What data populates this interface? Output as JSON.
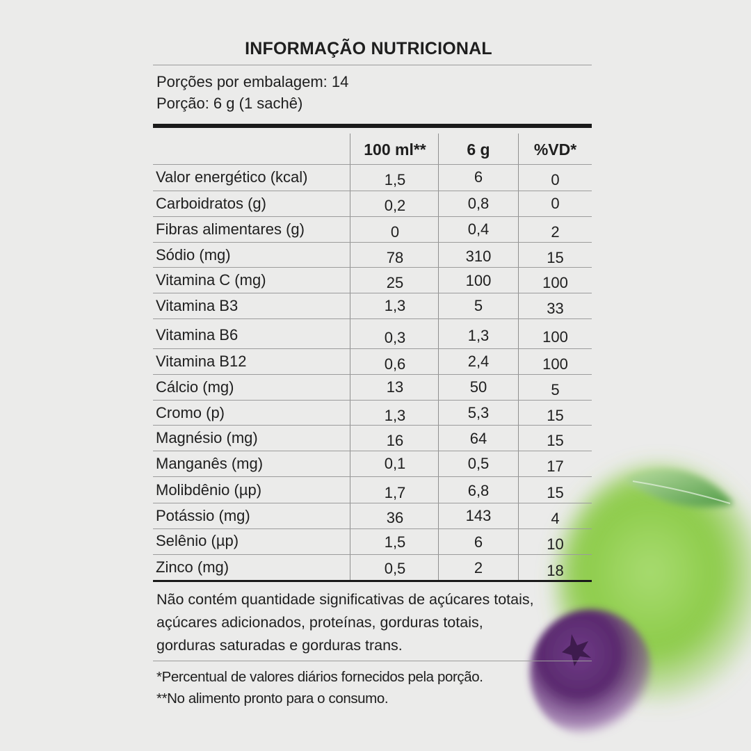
{
  "title": "INFORMAÇÃO NUTRICIONAL",
  "servings_per_package": "Porções por embalagem: 14",
  "serving_size": "Porção: 6 g (1 sachê)",
  "columns": [
    "100 ml**",
    "6 g",
    "%VD*"
  ],
  "rows": [
    {
      "label": "Valor energético (kcal)",
      "per100ml": "1,5",
      "per6g": "6",
      "vd": "0"
    },
    {
      "label": "Carboidratos (g)",
      "per100ml": "0,2",
      "per6g": "0,8",
      "vd": "0"
    },
    {
      "label": "Fibras alimentares (g)",
      "per100ml": "0",
      "per6g": "0,4",
      "vd": "2"
    },
    {
      "label": "Sódio (mg)",
      "per100ml": "78",
      "per6g": "310",
      "vd": "15"
    },
    {
      "label": "Vitamina C (mg)",
      "per100ml": "25",
      "per6g": "100",
      "vd": "100"
    },
    {
      "label": "Vitamina B3",
      "per100ml": "1,3",
      "per6g": "5",
      "vd": "33"
    },
    {
      "label": "Vitamina B6",
      "per100ml": "0,3",
      "per6g": "1,3",
      "vd": "100"
    },
    {
      "label": "Vitamina B12",
      "per100ml": "0,6",
      "per6g": "2,4",
      "vd": "100"
    },
    {
      "label": "Cálcio (mg)",
      "per100ml": "13",
      "per6g": "50",
      "vd": "5"
    },
    {
      "label": "Cromo (p)",
      "per100ml": "1,3",
      "per6g": "5,3",
      "vd": "15"
    },
    {
      "label": "Magnésio (mg)",
      "per100ml": "16",
      "per6g": "64",
      "vd": "15"
    },
    {
      "label": "Manganês (mg)",
      "per100ml": "0,1",
      "per6g": "0,5",
      "vd": "17"
    },
    {
      "label": "Molibdênio (µp)",
      "per100ml": "1,7",
      "per6g": "6,8",
      "vd": "15"
    },
    {
      "label": "Potássio (mg)",
      "per100ml": "36",
      "per6g": "143",
      "vd": "4"
    },
    {
      "label": "Selênio (µp)",
      "per100ml": "1,5",
      "per6g": "6",
      "vd": "10"
    },
    {
      "label": "Zinco (mg)",
      "per100ml": "0,5",
      "per6g": "2",
      "vd": "18"
    }
  ],
  "note_lines": [
    "Não contém quantidade significativas de açúcares totais,",
    "açúcares adicionados, proteínas, gorduras totais,",
    "gorduras saturadas e gorduras trans."
  ],
  "footnote_vd": "*Percentual de valores diários fornecidos pela porção.",
  "footnote_ready": "**No alimento pronto para o consumo.",
  "colors": {
    "background": "#ebebea",
    "text": "#1e1e1e",
    "lime": "#8fcf45",
    "leaf": "#5aa44a",
    "acai": "#5e2a72"
  },
  "decorations": [
    "lime-fruit",
    "lime-leaf",
    "acai-berry"
  ]
}
